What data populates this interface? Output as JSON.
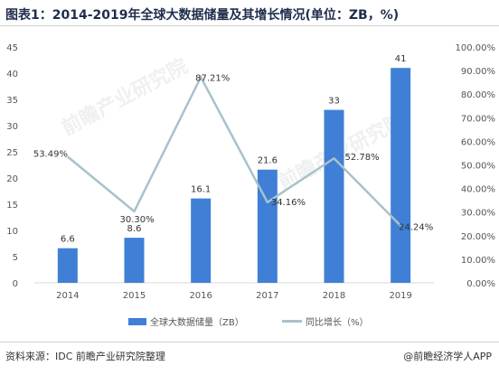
{
  "title": "图表1：2014-2019年全球大数据储量及其增长情况(单位：ZB，%)",
  "footer": {
    "source": "资料来源：IDC 前瞻产业研究院整理",
    "brand": "@前瞻经济学人APP"
  },
  "watermark": "前瞻产业研究院",
  "legend": {
    "bar_label": "全球大数据储量（ZB）",
    "line_label": "同比增长（%）"
  },
  "chart_data": {
    "type": "bar+line",
    "categories": [
      "2014",
      "2015",
      "2016",
      "2017",
      "2018",
      "2019"
    ],
    "series": [
      {
        "name": "全球大数据储量（ZB）",
        "type": "bar",
        "axis": "left",
        "color": "#3f7fd6",
        "values": [
          6.6,
          8.6,
          16.1,
          21.6,
          33,
          41
        ],
        "labels": [
          "6.6",
          "8.6",
          "16.1",
          "21.6",
          "33",
          "41"
        ]
      },
      {
        "name": "同比增长（%）",
        "type": "line",
        "axis": "right",
        "color": "#a9c1cc",
        "values": [
          53.49,
          30.3,
          87.21,
          34.16,
          52.78,
          24.24
        ],
        "labels": [
          "53.49%",
          "30.30%",
          "87.21%",
          "34.16%",
          "52.78%",
          "24.24%"
        ]
      }
    ],
    "y_left": {
      "min": 0,
      "max": 45,
      "ticks": [
        "0",
        "5",
        "10",
        "15",
        "20",
        "25",
        "30",
        "35",
        "40",
        "45"
      ]
    },
    "y_right": {
      "min": 0,
      "max": 100,
      "ticks": [
        "0.00%",
        "10.00%",
        "20.00%",
        "30.00%",
        "40.00%",
        "50.00%",
        "60.00%",
        "70.00%",
        "80.00%",
        "90.00%",
        "100.00%"
      ]
    },
    "grid": false,
    "legend_position": "bottom"
  }
}
